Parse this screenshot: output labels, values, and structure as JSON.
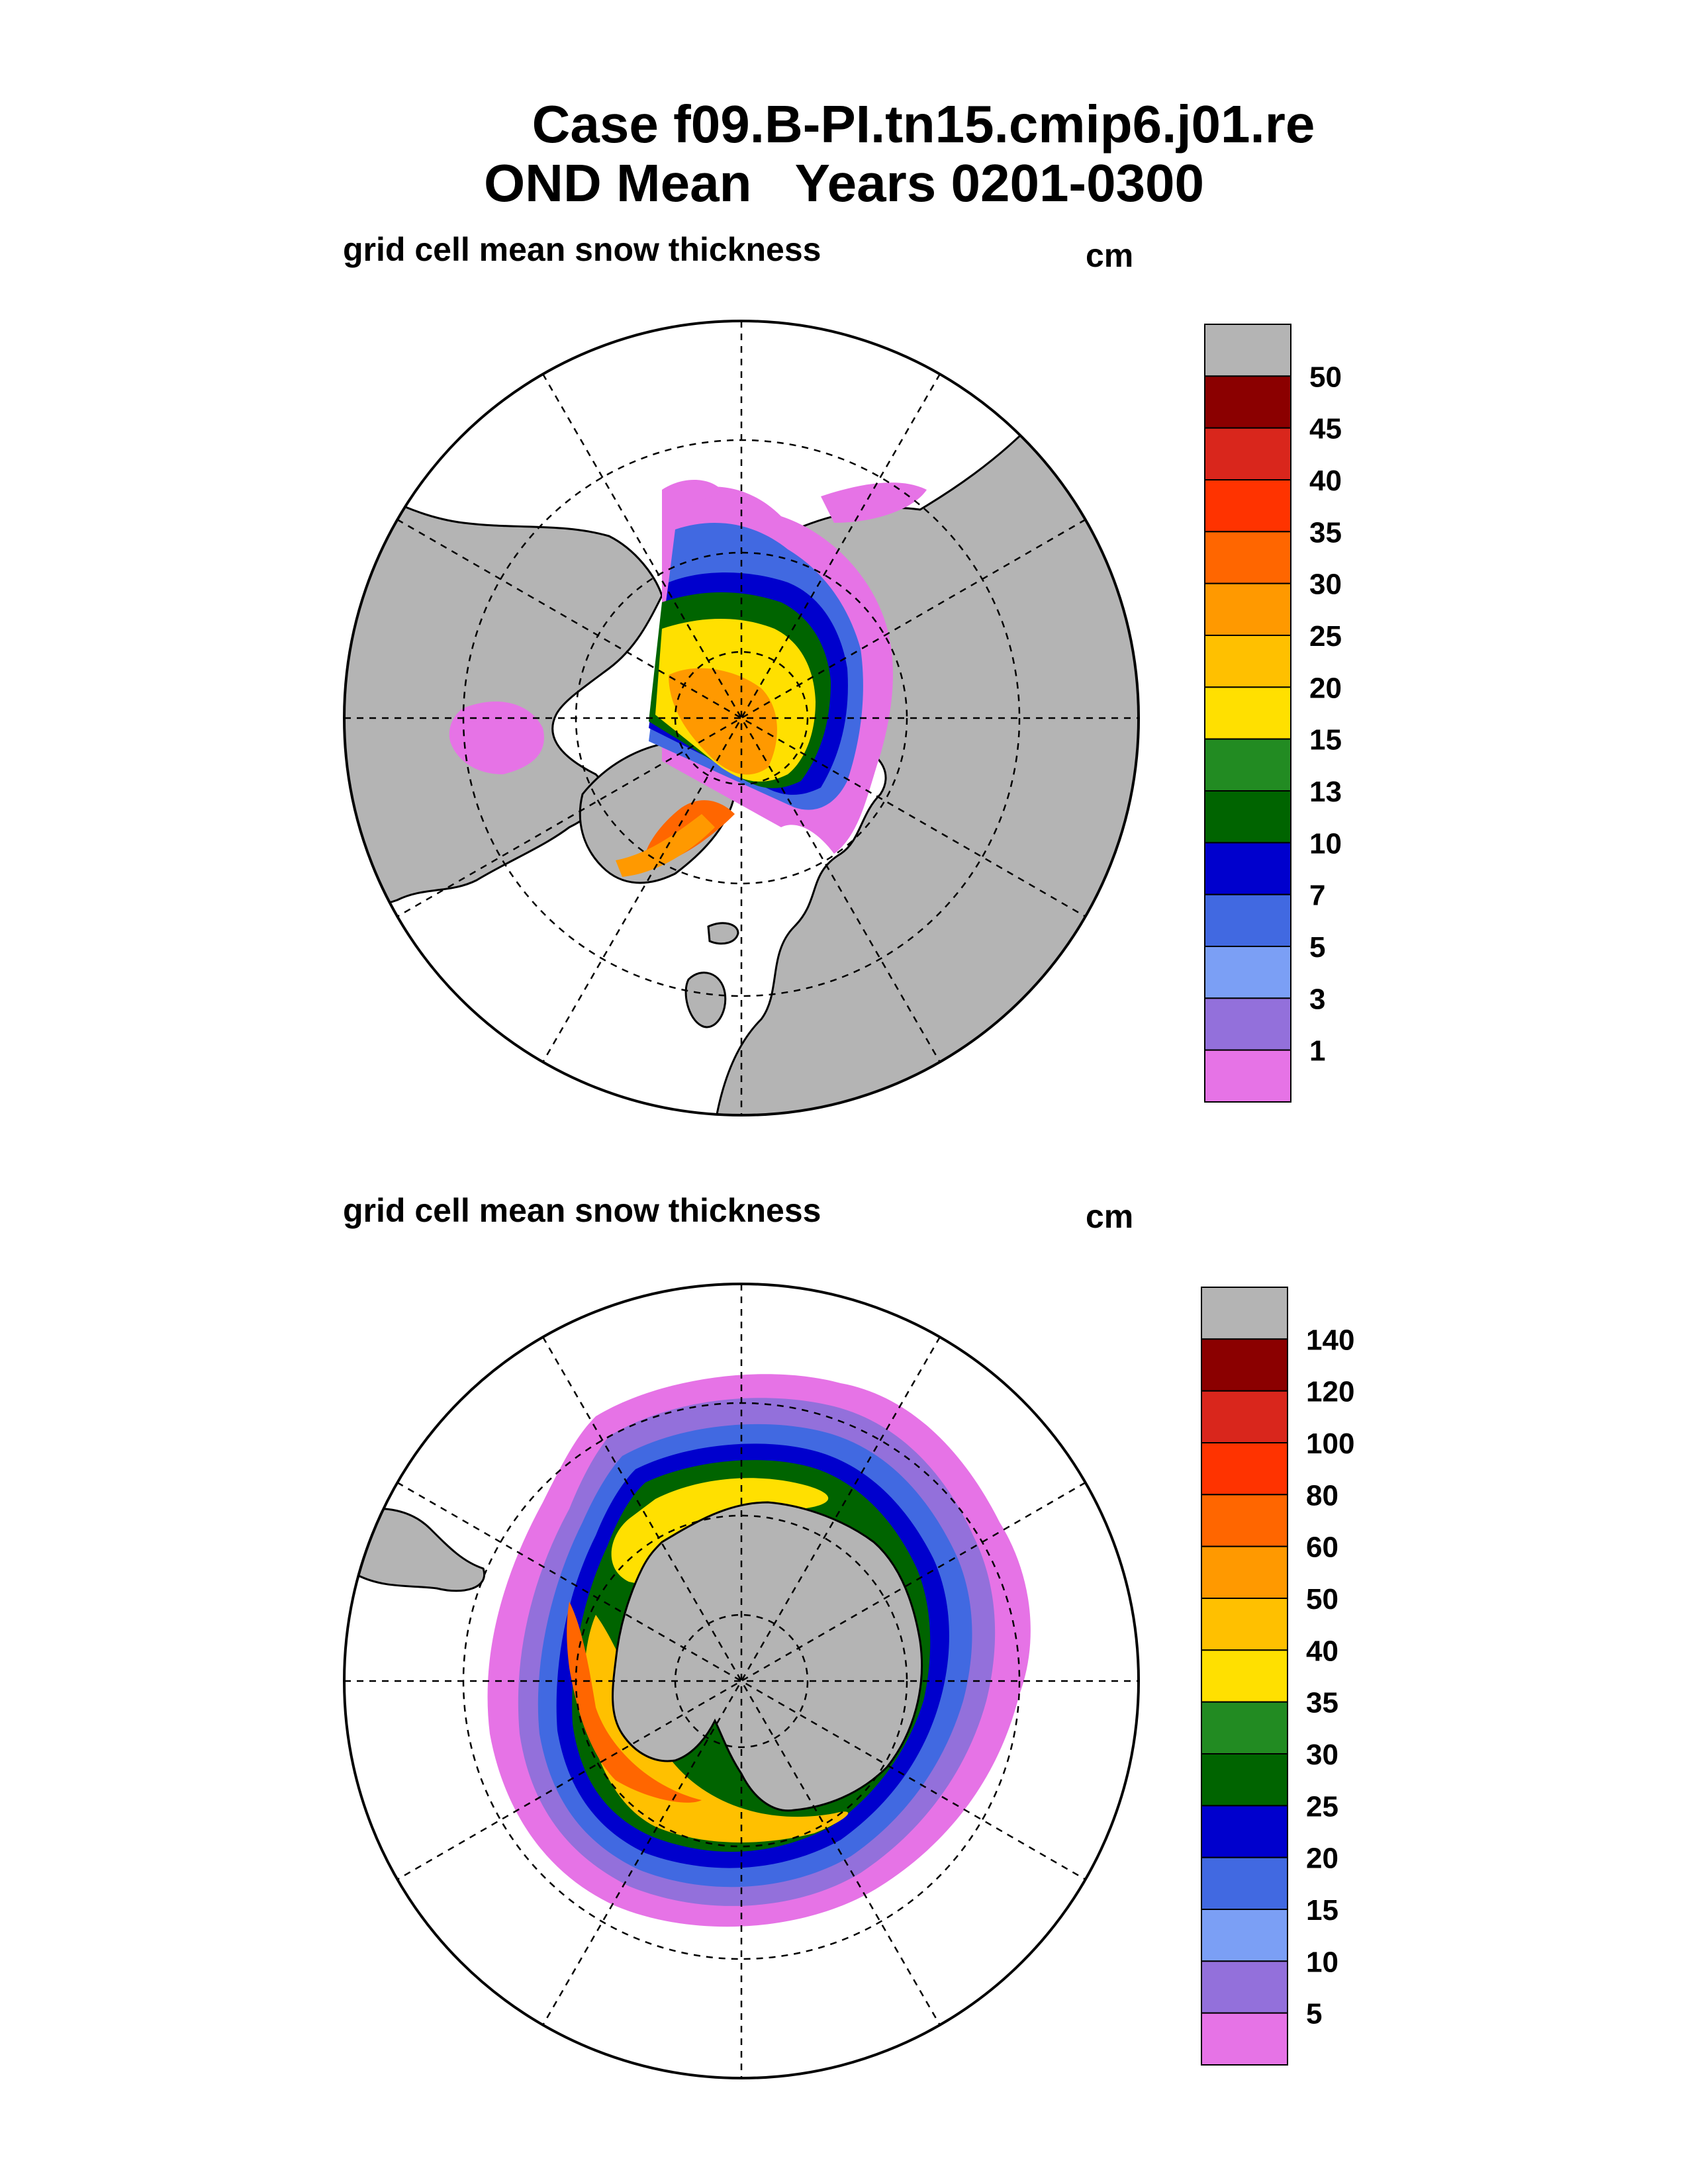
{
  "title": {
    "line1": "Case f09.B-PI.tn15.cmip6.j01.re",
    "line2": "OND Mean   Years 0201-0300"
  },
  "panels": [
    {
      "subtitle": "grid cell mean snow thickness",
      "units": "cm",
      "projection": "north-polar-stereographic",
      "colorbar": {
        "labels": [
          "50",
          "45",
          "40",
          "35",
          "30",
          "25",
          "20",
          "15",
          "13",
          "10",
          "7",
          "5",
          "3",
          "1"
        ],
        "colors": [
          "#b4b4b4",
          "#8b0000",
          "#d9261c",
          "#ff3300",
          "#ff6600",
          "#ff9900",
          "#ffc000",
          "#ffe000",
          "#228b22",
          "#006400",
          "#0000cd",
          "#4169e1",
          "#7b9ff5",
          "#9370db",
          "#e673e6"
        ]
      }
    },
    {
      "subtitle": "grid cell mean snow thickness",
      "units": "cm",
      "projection": "south-polar-stereographic",
      "colorbar": {
        "labels": [
          "140",
          "120",
          "100",
          "80",
          "60",
          "50",
          "40",
          "35",
          "30",
          "25",
          "20",
          "15",
          "10",
          "5"
        ],
        "colors": [
          "#b4b4b4",
          "#8b0000",
          "#d9261c",
          "#ff3300",
          "#ff6600",
          "#ff9900",
          "#ffc000",
          "#ffe000",
          "#228b22",
          "#006400",
          "#0000cd",
          "#4169e1",
          "#7b9ff5",
          "#9370db",
          "#e673e6"
        ]
      }
    }
  ],
  "colors": {
    "land": "#b4b4b4",
    "ocean": "#ffffff"
  }
}
